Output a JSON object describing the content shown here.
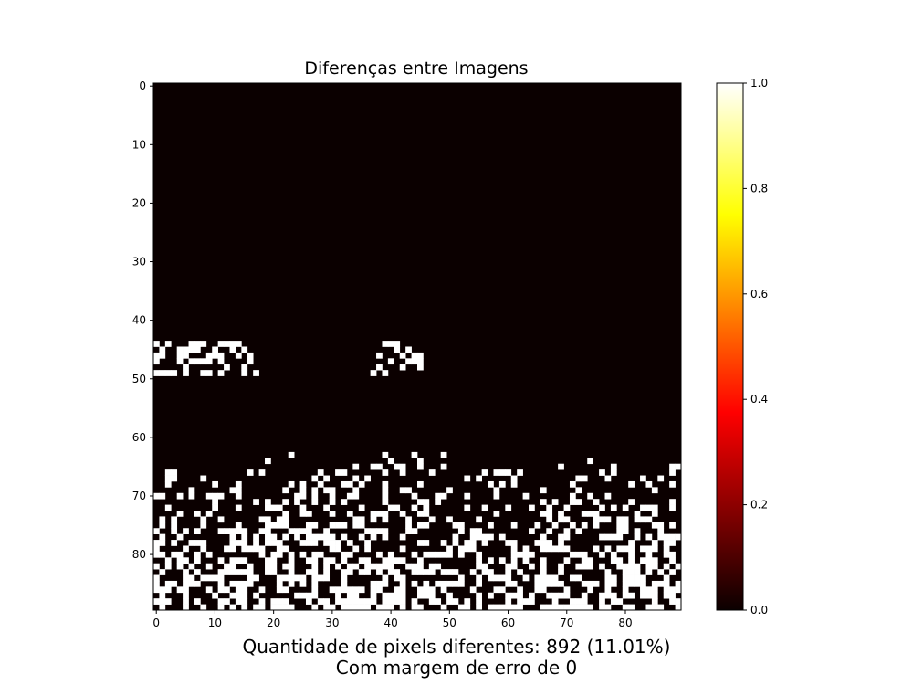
{
  "chart_data": {
    "type": "heatmap",
    "title": "Diferenças entre Imagens",
    "colormap": "hot",
    "grid": false,
    "x_ticks": [
      0,
      10,
      20,
      30,
      40,
      50,
      60,
      70,
      80
    ],
    "y_ticks": [
      0,
      10,
      20,
      30,
      40,
      50,
      60,
      70,
      80
    ],
    "xlim": [
      -0.5,
      89.5
    ],
    "ylim": [
      89.5,
      -0.5
    ],
    "rows": 90,
    "cols": 90,
    "colorbar": {
      "range": [
        0.0,
        1.0
      ],
      "ticks": [
        "0.0",
        "0.2",
        "0.4",
        "0.6",
        "0.8",
        "1.0"
      ]
    },
    "values": "binary difference mask (0 or 1) with 892 cells equal to 1",
    "different_pixels": 892,
    "different_percent": "11.01%",
    "tolerance": 0,
    "caption_line1": "Quantidade de pixels diferentes: 892 (11.01%)",
    "caption_line2": "Com margem de erro de 0"
  }
}
